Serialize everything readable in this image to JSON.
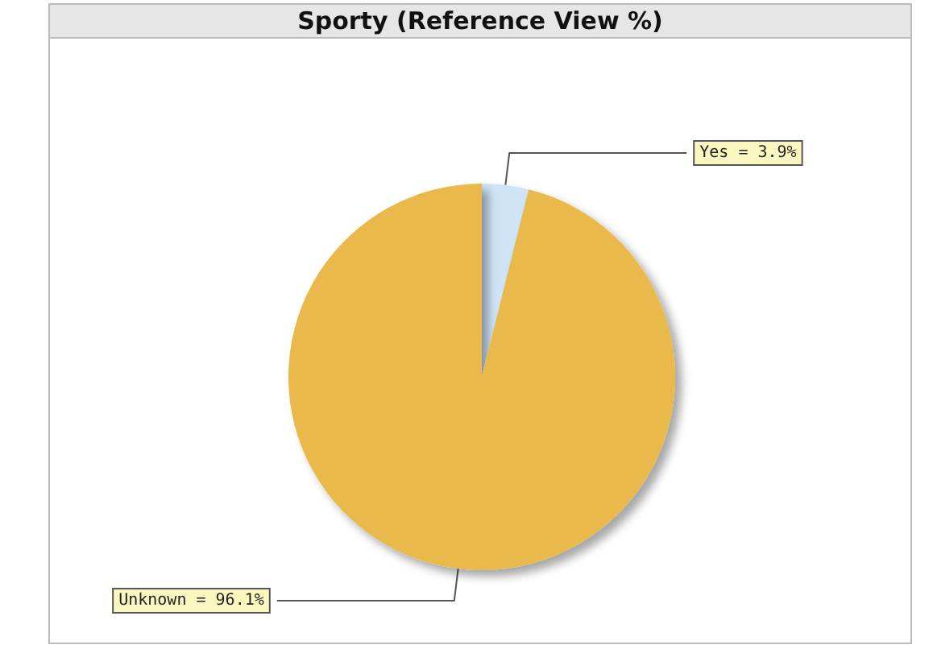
{
  "chart_data": {
    "type": "pie",
    "title": "Sporty (Reference View %)",
    "categories": [
      "Yes",
      "Unknown"
    ],
    "values": [
      3.9,
      96.1
    ],
    "colors": [
      "#cfe5f7",
      "#e9b94c"
    ],
    "value_labels": [
      "= 3.9%",
      "= 96.1%"
    ]
  }
}
